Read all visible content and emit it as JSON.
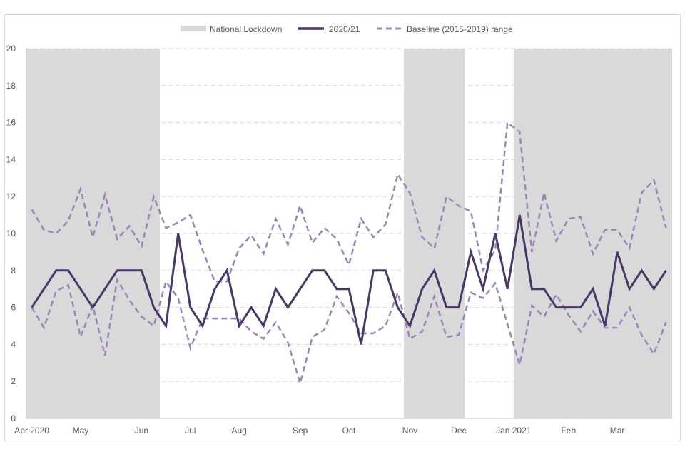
{
  "chart_data": {
    "type": "line",
    "title": "",
    "xlabel": "",
    "ylabel": "",
    "ylim": [
      0,
      20
    ],
    "y_ticks": [
      0,
      2,
      4,
      6,
      8,
      10,
      12,
      14,
      16,
      18,
      20
    ],
    "grid": "horizontal dashed",
    "legend_position": "top",
    "x_range_weeks": [
      0,
      52
    ],
    "x_tick_labels": [
      {
        "label": "Apr 2020",
        "week": 0
      },
      {
        "label": "May",
        "week": 4
      },
      {
        "label": "Jun",
        "week": 9
      },
      {
        "label": "Jul",
        "week": 13
      },
      {
        "label": "Aug",
        "week": 17
      },
      {
        "label": "Sep",
        "week": 22
      },
      {
        "label": "Oct",
        "week": 26
      },
      {
        "label": "Nov",
        "week": 31
      },
      {
        "label": "Dec",
        "week": 35
      },
      {
        "label": "Jan 2021",
        "week": 39.5
      },
      {
        "label": "Feb",
        "week": 44
      },
      {
        "label": "Mar",
        "week": 48
      }
    ],
    "lockdown_periods": [
      [
        0,
        11
      ],
      [
        31,
        36
      ],
      [
        40,
        53
      ]
    ],
    "legend": {
      "lockdown_label": "National Lockdown",
      "series_label": "2020/21",
      "baseline_label": "Baseline (2015-2019) range"
    },
    "series": [
      {
        "name": "2020/21",
        "style": "solid",
        "color": "#4b3767",
        "values": [
          6,
          7,
          8,
          8,
          7,
          6,
          7,
          8,
          8,
          8,
          6,
          5,
          10,
          6,
          5,
          7,
          8,
          5,
          6,
          5,
          7,
          6,
          7,
          8,
          8,
          7,
          7,
          4,
          8,
          8,
          6,
          5,
          7,
          8,
          6,
          6,
          9,
          7,
          10,
          7,
          11,
          7,
          7,
          6,
          6,
          6,
          7,
          5,
          9,
          7,
          8,
          7,
          8
        ]
      },
      {
        "name": "Baseline (2015-2019) range upper",
        "style": "dashed",
        "color": "#9d84ba",
        "values": [
          11.3,
          10.2,
          10,
          10.7,
          12.4,
          9.8,
          12.1,
          9.7,
          10.4,
          9.3,
          12,
          10.3,
          10.6,
          11,
          9.1,
          7.4,
          7.4,
          9.2,
          9.9,
          8.9,
          10.8,
          9.4,
          11.5,
          9.5,
          10.3,
          9.7,
          8.3,
          10.8,
          9.8,
          10.5,
          13.2,
          12.2,
          9.8,
          9.2,
          12,
          11.5,
          11.2,
          8,
          9.1,
          16,
          15.5,
          9,
          12.2,
          9.6,
          10.8,
          10.9,
          8.9,
          10.2,
          10.2,
          9.2,
          12.2,
          12.9,
          10.3
        ]
      },
      {
        "name": "Baseline (2015-2019) range lower",
        "style": "dashed",
        "color": "#9d84ba",
        "values": [
          6,
          4.9,
          6.9,
          7.2,
          4.4,
          6.1,
          3.4,
          7.5,
          6.4,
          5.5,
          5,
          7.4,
          6.5,
          3.8,
          5.4,
          5.4,
          5.4,
          5.4,
          4.7,
          4.3,
          5.2,
          4.1,
          1.9,
          4.4,
          4.8,
          6.6,
          5.7,
          4.6,
          4.6,
          5,
          6.8,
          4.3,
          4.7,
          6.6,
          4.4,
          4.5,
          6.8,
          6.5,
          7.3,
          5.1,
          2.9,
          6.1,
          5.5,
          6.7,
          5.6,
          4.7,
          5.8,
          4.9,
          4.9,
          6,
          4.5,
          3.5,
          5.2
        ]
      }
    ],
    "colors": {
      "lockdown_fill": "#d9d9d9",
      "grid": "#d9d9d9",
      "axis": "#bfbfbf",
      "text": "#595959"
    }
  }
}
